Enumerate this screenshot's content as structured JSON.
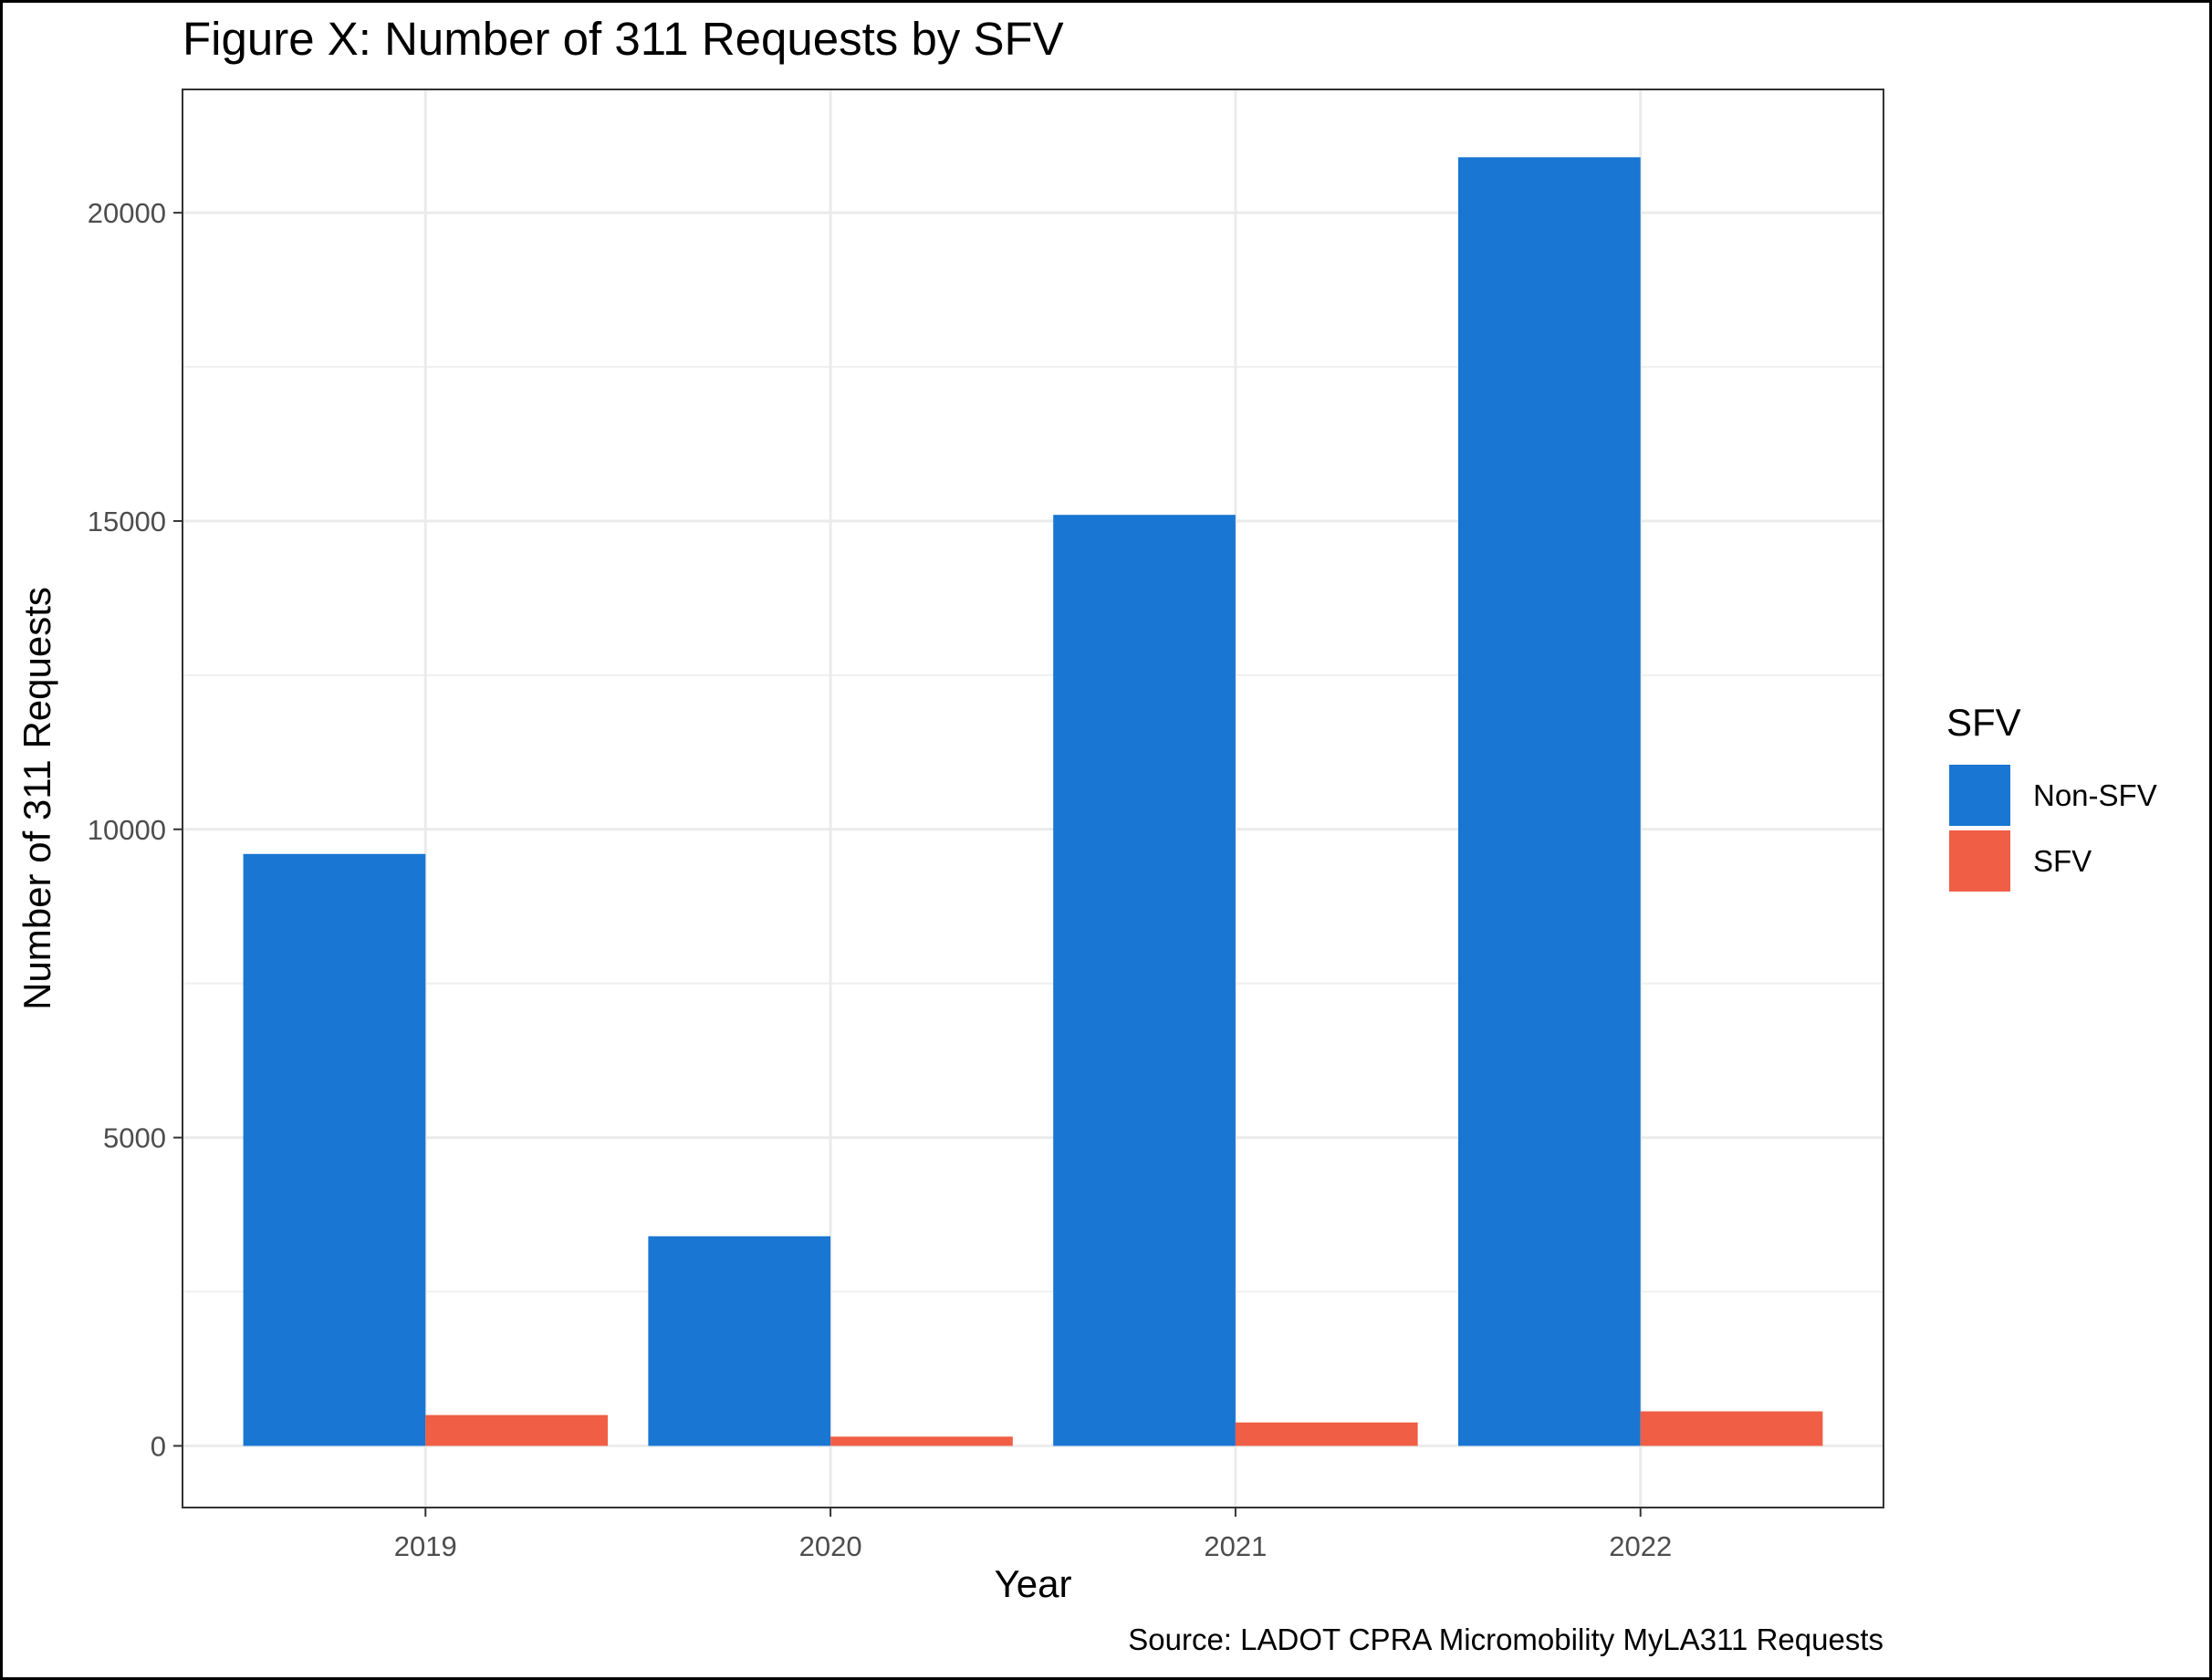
{
  "chart_data": {
    "type": "bar",
    "title": "Figure X: Number of 311 Requests by SFV",
    "xlabel": "Year",
    "ylabel": "Number of 311 Requests",
    "caption": "Source: LADOT CPRA Micromobility MyLA311 Requests",
    "categories": [
      "2019",
      "2020",
      "2021",
      "2022"
    ],
    "series": [
      {
        "name": "Non-SFV",
        "color": "#1976D2",
        "values": [
          9600,
          3400,
          15100,
          20900
        ]
      },
      {
        "name": "SFV",
        "color": "#EF5E45",
        "values": [
          500,
          150,
          380,
          560
        ]
      }
    ],
    "ylim": [
      -1000,
      22000
    ],
    "yticks": [
      0,
      5000,
      10000,
      15000,
      20000
    ],
    "yticks_minor": [
      2500,
      7500,
      12500,
      17500
    ],
    "grid": true,
    "legend": {
      "title": "SFV",
      "position": "right"
    }
  }
}
